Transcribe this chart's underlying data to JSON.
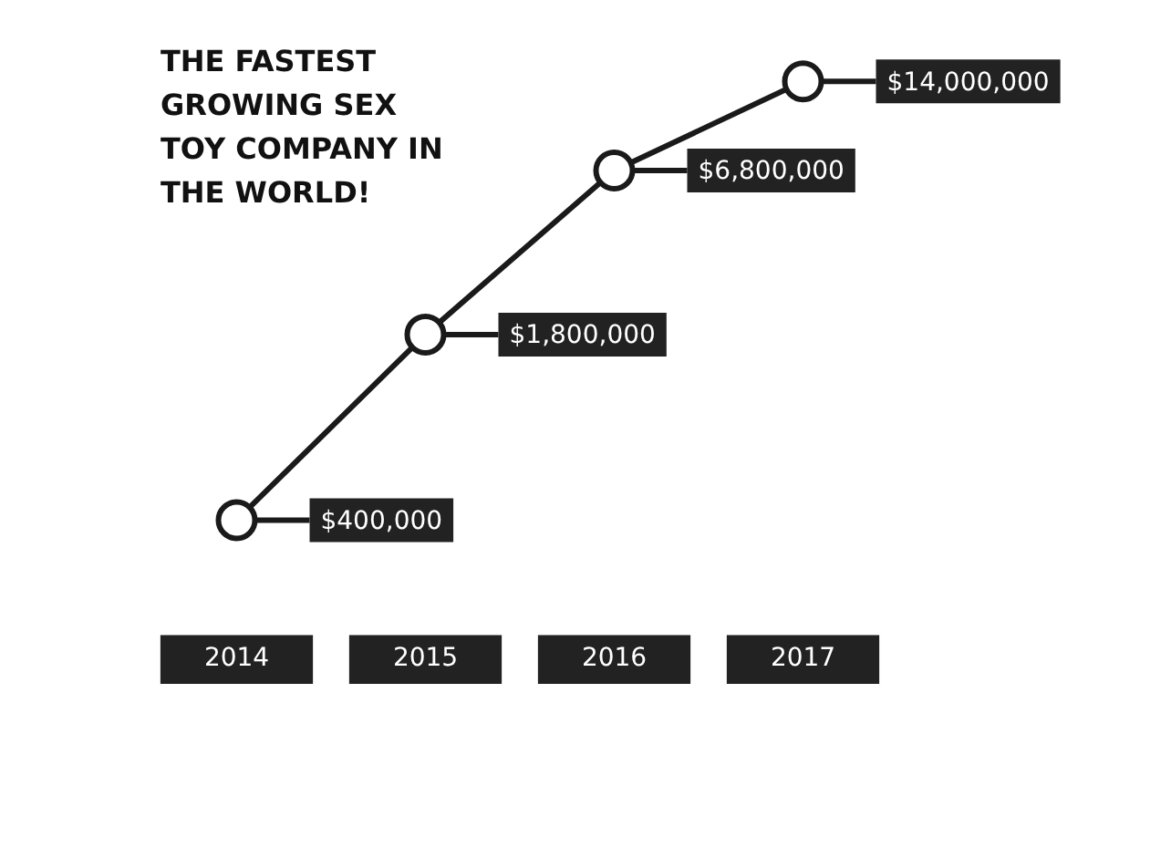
{
  "chart_data": {
    "type": "line",
    "title": "THE FASTEST GROWING SEX TOY COMPANY IN THE WORLD!",
    "categories": [
      "2014",
      "2015",
      "2016",
      "2017"
    ],
    "series": [
      {
        "color": "#1a1a1a",
        "values": [
          400000,
          1800000,
          6800000,
          14000000
        ],
        "value_labels": [
          "$400,000",
          "$1,800,000",
          "$6,800,000",
          "$14,000,000"
        ]
      }
    ],
    "marker": "circle",
    "log": true,
    "grid": false,
    "legend": false,
    "tick_labels": "x"
  }
}
